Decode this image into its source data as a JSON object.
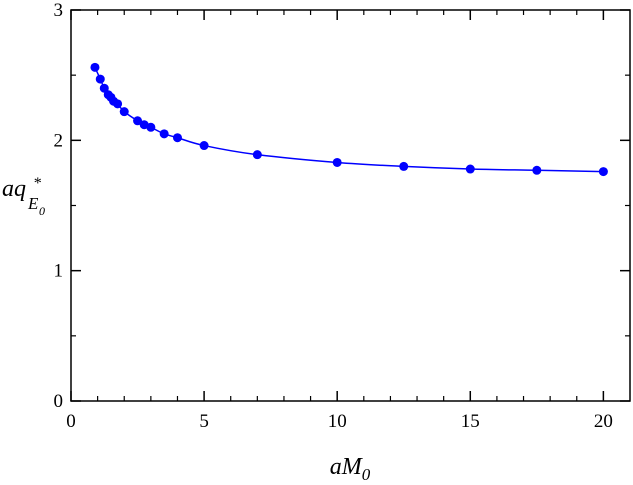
{
  "chart_data": {
    "type": "scatter",
    "xlabel": {
      "base": "aM",
      "sub": "0"
    },
    "ylabel": {
      "base": "aq",
      "sup": "*",
      "sub": "E",
      "subsub": "0"
    },
    "xlim": [
      0,
      21
    ],
    "ylim": [
      0,
      3
    ],
    "xticks": [
      0,
      5,
      10,
      15,
      20
    ],
    "yticks": [
      0,
      1,
      2,
      3
    ],
    "grid": false,
    "legend": "none",
    "colors": {
      "series": "#0000ff",
      "axis": "#000000"
    },
    "series": [
      {
        "marker": "circle",
        "points": [
          {
            "x": 0.9,
            "y": 2.56
          },
          {
            "x": 1.1,
            "y": 2.47
          },
          {
            "x": 1.25,
            "y": 2.4
          },
          {
            "x": 1.4,
            "y": 2.35
          },
          {
            "x": 1.5,
            "y": 2.33
          },
          {
            "x": 1.6,
            "y": 2.3
          },
          {
            "x": 1.75,
            "y": 2.28
          },
          {
            "x": 2.0,
            "y": 2.22
          },
          {
            "x": 2.5,
            "y": 2.15
          },
          {
            "x": 2.75,
            "y": 2.12
          },
          {
            "x": 3.0,
            "y": 2.1
          },
          {
            "x": 3.5,
            "y": 2.05
          },
          {
            "x": 4.0,
            "y": 2.02
          },
          {
            "x": 5.0,
            "y": 1.96
          },
          {
            "x": 7.0,
            "y": 1.89
          },
          {
            "x": 10.0,
            "y": 1.83
          },
          {
            "x": 12.5,
            "y": 1.8
          },
          {
            "x": 15.0,
            "y": 1.78
          },
          {
            "x": 17.5,
            "y": 1.77
          },
          {
            "x": 20.0,
            "y": 1.76
          }
        ],
        "fit_curve": true
      }
    ]
  }
}
